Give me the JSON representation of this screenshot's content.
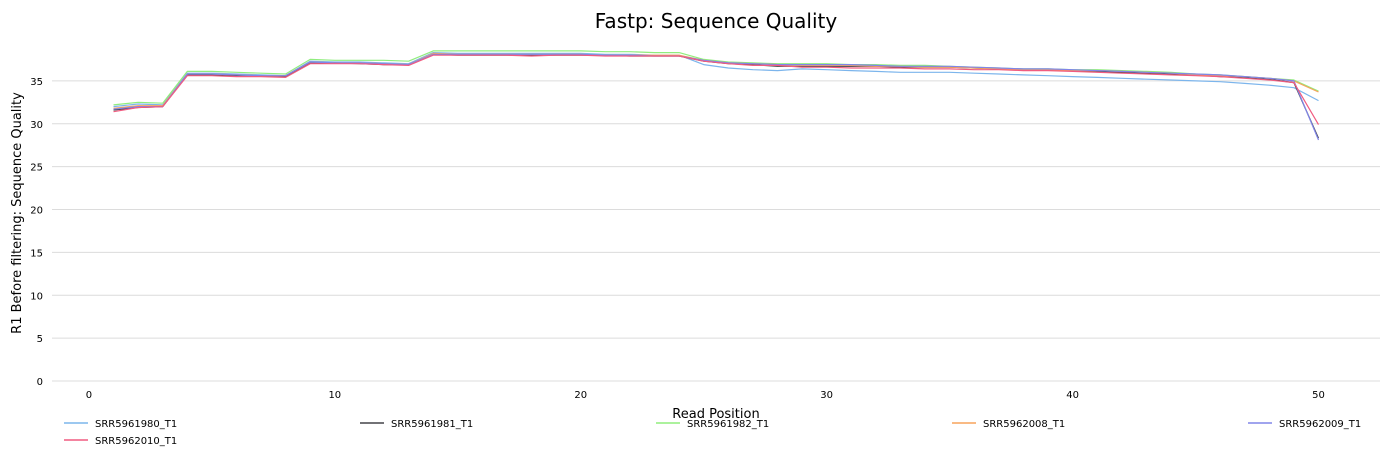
{
  "chart_data": {
    "type": "line",
    "title": "Fastp: Sequence Quality",
    "xlabel": "Read Position",
    "ylabel": "R1 Before filtering: Sequence Quality",
    "xlim": [
      -1.5,
      52.5
    ],
    "ylim": [
      0,
      40
    ],
    "xticks": [
      0,
      10,
      20,
      30,
      40,
      50
    ],
    "yticks": [
      0,
      5,
      10,
      15,
      20,
      25,
      30,
      35
    ],
    "grid": "horizontal",
    "legend_position": "bottom",
    "x": [
      1,
      2,
      3,
      4,
      5,
      6,
      7,
      8,
      9,
      10,
      11,
      12,
      13,
      14,
      15,
      16,
      17,
      18,
      19,
      20,
      21,
      22,
      23,
      24,
      25,
      26,
      27,
      28,
      29,
      30,
      31,
      32,
      33,
      34,
      35,
      36,
      37,
      38,
      39,
      40,
      41,
      42,
      43,
      44,
      45,
      46,
      47,
      48,
      49,
      50
    ],
    "series": [
      {
        "name": "SRR5961980_T1",
        "color": "#7cb5ec",
        "values": [
          32.0,
          32.3,
          32.2,
          35.9,
          35.9,
          35.8,
          35.7,
          35.6,
          37.3,
          37.2,
          37.2,
          37.1,
          37.0,
          38.3,
          38.2,
          38.2,
          38.2,
          38.2,
          38.2,
          38.2,
          38.1,
          38.1,
          38.0,
          38.0,
          36.9,
          36.5,
          36.3,
          36.2,
          36.4,
          36.3,
          36.2,
          36.1,
          36.0,
          36.0,
          36.0,
          35.9,
          35.8,
          35.7,
          35.6,
          35.5,
          35.4,
          35.3,
          35.2,
          35.1,
          35.0,
          34.9,
          34.7,
          34.5,
          34.2,
          32.7
        ]
      },
      {
        "name": "SRR5961981_T1",
        "color": "#434348",
        "values": [
          31.6,
          31.9,
          32.0,
          35.7,
          35.7,
          35.6,
          35.6,
          35.5,
          37.1,
          37.1,
          37.0,
          36.9,
          36.9,
          38.1,
          38.0,
          38.0,
          38.0,
          38.0,
          38.0,
          38.0,
          38.0,
          37.9,
          37.9,
          37.9,
          37.3,
          37.0,
          36.9,
          36.7,
          36.7,
          36.7,
          36.7,
          36.7,
          36.6,
          36.6,
          36.6,
          36.5,
          36.4,
          36.3,
          36.3,
          36.2,
          36.1,
          36.0,
          35.9,
          35.8,
          35.7,
          35.5,
          35.4,
          35.2,
          34.8,
          28.3
        ]
      },
      {
        "name": "SRR5961982_T1",
        "color": "#90ed7d",
        "values": [
          32.2,
          32.5,
          32.4,
          36.1,
          36.1,
          36.0,
          35.9,
          35.8,
          37.5,
          37.4,
          37.4,
          37.4,
          37.3,
          38.5,
          38.5,
          38.5,
          38.5,
          38.5,
          38.5,
          38.5,
          38.4,
          38.4,
          38.3,
          38.3,
          37.5,
          37.2,
          37.1,
          37.0,
          37.0,
          37.0,
          36.9,
          36.9,
          36.8,
          36.8,
          36.7,
          36.6,
          36.5,
          36.4,
          36.4,
          36.3,
          36.3,
          36.2,
          36.1,
          36.0,
          35.8,
          35.7,
          35.5,
          35.3,
          35.1,
          33.8
        ]
      },
      {
        "name": "SRR5962008_T1",
        "color": "#f7a35c",
        "values": [
          31.8,
          32.1,
          32.1,
          35.8,
          35.8,
          35.7,
          35.6,
          35.6,
          37.2,
          37.1,
          37.1,
          37.0,
          36.9,
          38.2,
          38.1,
          38.1,
          38.1,
          38.1,
          38.1,
          38.1,
          38.0,
          38.0,
          38.0,
          38.0,
          37.4,
          37.1,
          37.0,
          36.9,
          36.8,
          36.8,
          36.8,
          36.7,
          36.7,
          36.6,
          36.6,
          36.5,
          36.4,
          36.3,
          36.3,
          36.2,
          36.2,
          36.1,
          36.0,
          35.9,
          35.7,
          35.6,
          35.5,
          35.3,
          35.0,
          33.7
        ]
      },
      {
        "name": "SRR5962009_T1",
        "color": "#8085e9",
        "values": [
          31.7,
          32.0,
          32.0,
          35.8,
          35.8,
          35.7,
          35.6,
          35.6,
          37.2,
          37.1,
          37.1,
          37.0,
          36.9,
          38.1,
          38.1,
          38.1,
          38.1,
          38.1,
          38.1,
          38.1,
          38.0,
          38.0,
          37.9,
          37.9,
          37.4,
          37.1,
          37.0,
          36.9,
          36.9,
          36.9,
          36.9,
          36.8,
          36.7,
          36.7,
          36.7,
          36.6,
          36.5,
          36.4,
          36.4,
          36.3,
          36.2,
          36.1,
          36.0,
          35.9,
          35.8,
          35.7,
          35.5,
          35.3,
          35.0,
          28.1
        ]
      },
      {
        "name": "SRR5962010_T1",
        "color": "#f15c80",
        "values": [
          31.4,
          31.9,
          32.0,
          35.6,
          35.6,
          35.5,
          35.5,
          35.4,
          37.0,
          37.0,
          37.0,
          36.9,
          36.8,
          38.0,
          38.0,
          38.0,
          38.0,
          37.9,
          38.0,
          38.0,
          37.9,
          37.9,
          37.9,
          37.9,
          37.3,
          37.0,
          36.8,
          36.8,
          36.6,
          36.6,
          36.5,
          36.5,
          36.5,
          36.4,
          36.4,
          36.3,
          36.3,
          36.2,
          36.2,
          36.1,
          36.0,
          35.9,
          35.8,
          35.7,
          35.6,
          35.5,
          35.3,
          35.1,
          34.8,
          29.9
        ]
      }
    ]
  }
}
